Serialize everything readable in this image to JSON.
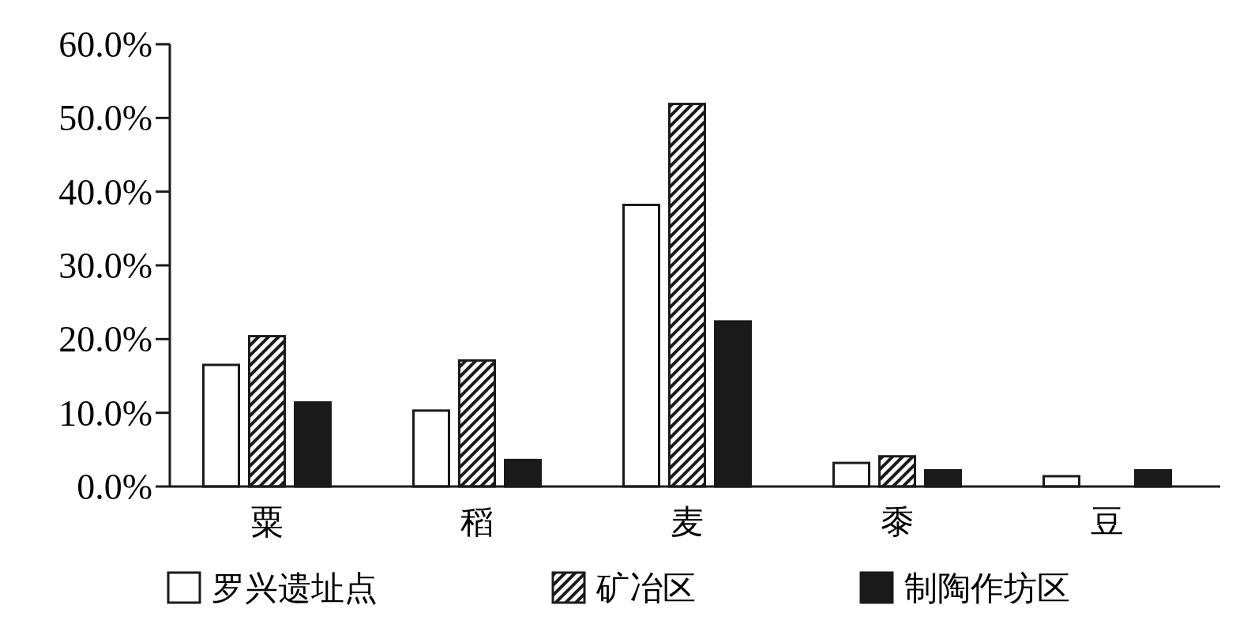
{
  "chart_data": {
    "type": "bar",
    "categories": [
      "粟",
      "稻",
      "麦",
      "黍",
      "豆"
    ],
    "series": [
      {
        "name": "罗兴遗址点",
        "color": "#ffffff",
        "values": [
          16.5,
          10.3,
          38.2,
          3.2,
          1.4
        ]
      },
      {
        "name": "矿冶区",
        "color": "#1a1a1a",
        "values": [
          20.4,
          17.1,
          51.9,
          4.1,
          0
        ]
      },
      {
        "name": "制陶作坊区",
        "color": "#1a1a1a",
        "values": [
          11.4,
          3.6,
          22.4,
          2.2,
          2.2
        ]
      }
    ],
    "ylim": [
      0,
      60
    ],
    "yticks": [
      {
        "value": 0,
        "label": "0.0%"
      },
      {
        "value": 10,
        "label": "10.0%"
      },
      {
        "value": 20,
        "label": "20.0%"
      },
      {
        "value": 30,
        "label": "30.0%"
      },
      {
        "value": 40,
        "label": "40.0%"
      },
      {
        "value": 50,
        "label": "50.0%"
      },
      {
        "value": 60,
        "label": "60.0%"
      }
    ],
    "grid": false,
    "legend": "bottom"
  }
}
